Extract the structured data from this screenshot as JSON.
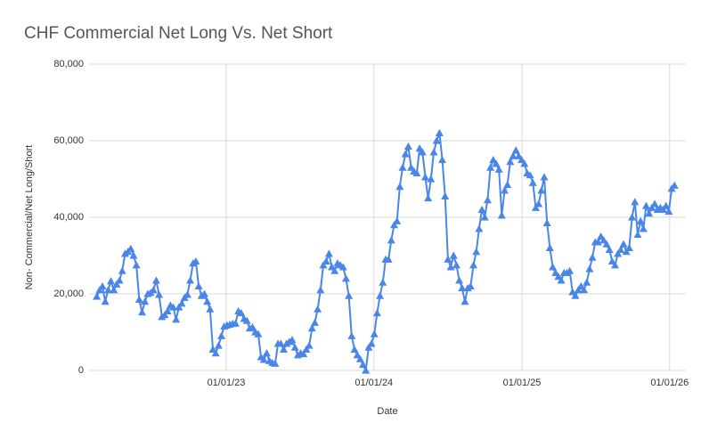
{
  "chart_data": {
    "type": "line",
    "title": "CHF Commercial Net Long Vs. Net Short",
    "x_label": "Date",
    "y_label": "Non- Commercial/Net Long/Short",
    "color": "#4a86e8",
    "marker": "triangle",
    "grid": true,
    "x": [
      "2022-02-15",
      "2022-02-22",
      "2022-03-01",
      "2022-03-08",
      "2022-03-15",
      "2022-03-22",
      "2022-03-29",
      "2022-04-05",
      "2022-04-12",
      "2022-04-19",
      "2022-04-26",
      "2022-05-03",
      "2022-05-10",
      "2022-05-17",
      "2022-05-24",
      "2022-05-31",
      "2022-06-07",
      "2022-06-14",
      "2022-06-21",
      "2022-06-28",
      "2022-07-05",
      "2022-07-12",
      "2022-07-19",
      "2022-07-26",
      "2022-08-02",
      "2022-08-09",
      "2022-08-16",
      "2022-08-23",
      "2022-08-30",
      "2022-09-06",
      "2022-09-13",
      "2022-09-20",
      "2022-09-27",
      "2022-10-04",
      "2022-10-11",
      "2022-10-18",
      "2022-10-25",
      "2022-11-01",
      "2022-11-08",
      "2022-11-15",
      "2022-11-22",
      "2022-11-29",
      "2022-12-06",
      "2022-12-13",
      "2022-12-20",
      "2022-12-27",
      "2023-01-03",
      "2023-01-10",
      "2023-01-17",
      "2023-01-24",
      "2023-01-31",
      "2023-02-07",
      "2023-02-14",
      "2023-02-21",
      "2023-02-28",
      "2023-03-07",
      "2023-03-14",
      "2023-03-21",
      "2023-03-28",
      "2023-04-04",
      "2023-04-11",
      "2023-04-18",
      "2023-04-25",
      "2023-05-02",
      "2023-05-09",
      "2023-05-16",
      "2023-05-23",
      "2023-05-30",
      "2023-06-06",
      "2023-06-13",
      "2023-06-20",
      "2023-06-27",
      "2023-07-04",
      "2023-07-11",
      "2023-07-18",
      "2023-07-25",
      "2023-08-01",
      "2023-08-08",
      "2023-08-15",
      "2023-08-22",
      "2023-08-29",
      "2023-09-05",
      "2023-09-12",
      "2023-09-19",
      "2023-09-26",
      "2023-10-03",
      "2023-10-10",
      "2023-10-17",
      "2023-10-24",
      "2023-10-31",
      "2023-11-07",
      "2023-11-14",
      "2023-11-21",
      "2023-11-28",
      "2023-12-05",
      "2023-12-12",
      "2023-12-19",
      "2023-12-26",
      "2024-01-02",
      "2024-01-09",
      "2024-01-16",
      "2024-01-23",
      "2024-01-30",
      "2024-02-06",
      "2024-02-13",
      "2024-02-20",
      "2024-02-27",
      "2024-03-05",
      "2024-03-12",
      "2024-03-19",
      "2024-03-26",
      "2024-04-02",
      "2024-04-09",
      "2024-04-16",
      "2024-04-23",
      "2024-04-30",
      "2024-05-07",
      "2024-05-14",
      "2024-05-21",
      "2024-05-28",
      "2024-06-04",
      "2024-06-11",
      "2024-06-18",
      "2024-06-25",
      "2024-07-02",
      "2024-07-09",
      "2024-07-16",
      "2024-07-23",
      "2024-07-30",
      "2024-08-06",
      "2024-08-13",
      "2024-08-20",
      "2024-08-27",
      "2024-09-03",
      "2024-09-10",
      "2024-09-17",
      "2024-09-24",
      "2024-10-01",
      "2024-10-08",
      "2024-10-15",
      "2024-10-22",
      "2024-10-29",
      "2024-11-05",
      "2024-11-12",
      "2024-11-19",
      "2024-11-26",
      "2024-12-03",
      "2024-12-10",
      "2024-12-17",
      "2024-12-24",
      "2024-12-31",
      "2025-01-07",
      "2025-01-14",
      "2025-01-21",
      "2025-01-28",
      "2025-02-04",
      "2025-02-11",
      "2025-02-18",
      "2025-02-25",
      "2025-03-04",
      "2025-03-11",
      "2025-03-18",
      "2025-03-25",
      "2025-04-01",
      "2025-04-08",
      "2025-04-15",
      "2025-04-22",
      "2025-04-29",
      "2025-05-06",
      "2025-05-13",
      "2025-05-20",
      "2025-05-27",
      "2025-06-03",
      "2025-06-10",
      "2025-06-17",
      "2025-06-24",
      "2025-07-01",
      "2025-07-08",
      "2025-07-15",
      "2025-07-22",
      "2025-07-29",
      "2025-08-05",
      "2025-08-12",
      "2025-08-19",
      "2025-08-26",
      "2025-09-02",
      "2025-09-09",
      "2025-09-16",
      "2025-09-23",
      "2025-09-30",
      "2025-10-07",
      "2025-10-14",
      "2025-10-21",
      "2025-10-28",
      "2025-11-04",
      "2025-11-11",
      "2025-11-18",
      "2025-11-25",
      "2025-12-02",
      "2025-12-09",
      "2025-12-16",
      "2025-12-23",
      "2025-12-30",
      "2026-01-06",
      "2026-01-13"
    ],
    "values": [
      19300,
      21000,
      22000,
      18000,
      21000,
      23300,
      21000,
      22500,
      23500,
      26000,
      30500,
      31000,
      31800,
      30000,
      27500,
      18500,
      15200,
      18000,
      20000,
      20300,
      21000,
      23500,
      19800,
      14000,
      14500,
      15500,
      17000,
      16500,
      13300,
      16500,
      17500,
      19000,
      19800,
      23500,
      28000,
      28500,
      22000,
      19500,
      20000,
      18000,
      16000,
      5500,
      4500,
      6500,
      9000,
      11500,
      11800,
      12000,
      12200,
      12300,
      15500,
      15000,
      13500,
      13000,
      11000,
      11300,
      10000,
      9500,
      3500,
      2800,
      4500,
      2500,
      2000,
      1800,
      7000,
      7000,
      5500,
      7000,
      7500,
      8000,
      6000,
      4000,
      4500,
      4300,
      5500,
      6500,
      11000,
      12500,
      16000,
      21000,
      27500,
      28500,
      30500,
      27000,
      26000,
      28000,
      27500,
      27000,
      24000,
      19500,
      9000,
      5500,
      4000,
      3000,
      1500,
      0,
      6000,
      7000,
      9500,
      15000,
      19500,
      23000,
      29000,
      29000,
      34000,
      38000,
      39000,
      48000,
      53000,
      56500,
      58500,
      53000,
      52000,
      51500,
      58000,
      57000,
      50500,
      45000,
      50000,
      57000,
      60000,
      62000,
      55000,
      45500,
      29000,
      27000,
      30000,
      27500,
      23500,
      21500,
      18000,
      21500,
      22000,
      27500,
      31000,
      37000,
      42000,
      40000,
      44500,
      53000,
      55000,
      54000,
      52500,
      40500,
      47000,
      48500,
      54500,
      56000,
      57500,
      56000,
      55000,
      54000,
      51500,
      51000,
      49000,
      42500,
      43500,
      47000,
      50500,
      38500,
      32000,
      27000,
      25500,
      24500,
      23500,
      25500,
      25500,
      26000,
      20500,
      19500,
      21000,
      22000,
      21000,
      23000,
      26500,
      29500,
      33500,
      33500,
      35000,
      34000,
      33000,
      31500,
      28500,
      27500,
      30500,
      31500,
      33000,
      31000,
      32000,
      40000,
      44000,
      35500,
      39000,
      37000,
      43000,
      41000,
      42500,
      43500,
      42000,
      42500,
      42000,
      43000,
      41500,
      47500,
      48300
    ],
    "xlim": [
      "2022-01-27",
      "2026-02-10"
    ],
    "xticks": [
      {
        "value": "2023-01-01",
        "label": "01/01/23"
      },
      {
        "value": "2024-01-01",
        "label": "01/01/24"
      },
      {
        "value": "2025-01-01",
        "label": "01/01/25"
      },
      {
        "value": "2026-01-01",
        "label": "01/01/26"
      }
    ],
    "ylim": [
      0,
      80000
    ],
    "yticks": [
      0,
      {
        "value": 20000,
        "label": "20,000"
      },
      {
        "value": 40000,
        "label": "40,000"
      },
      {
        "value": 60000,
        "label": "60,000"
      },
      {
        "value": 80000,
        "label": "80,000"
      }
    ]
  }
}
